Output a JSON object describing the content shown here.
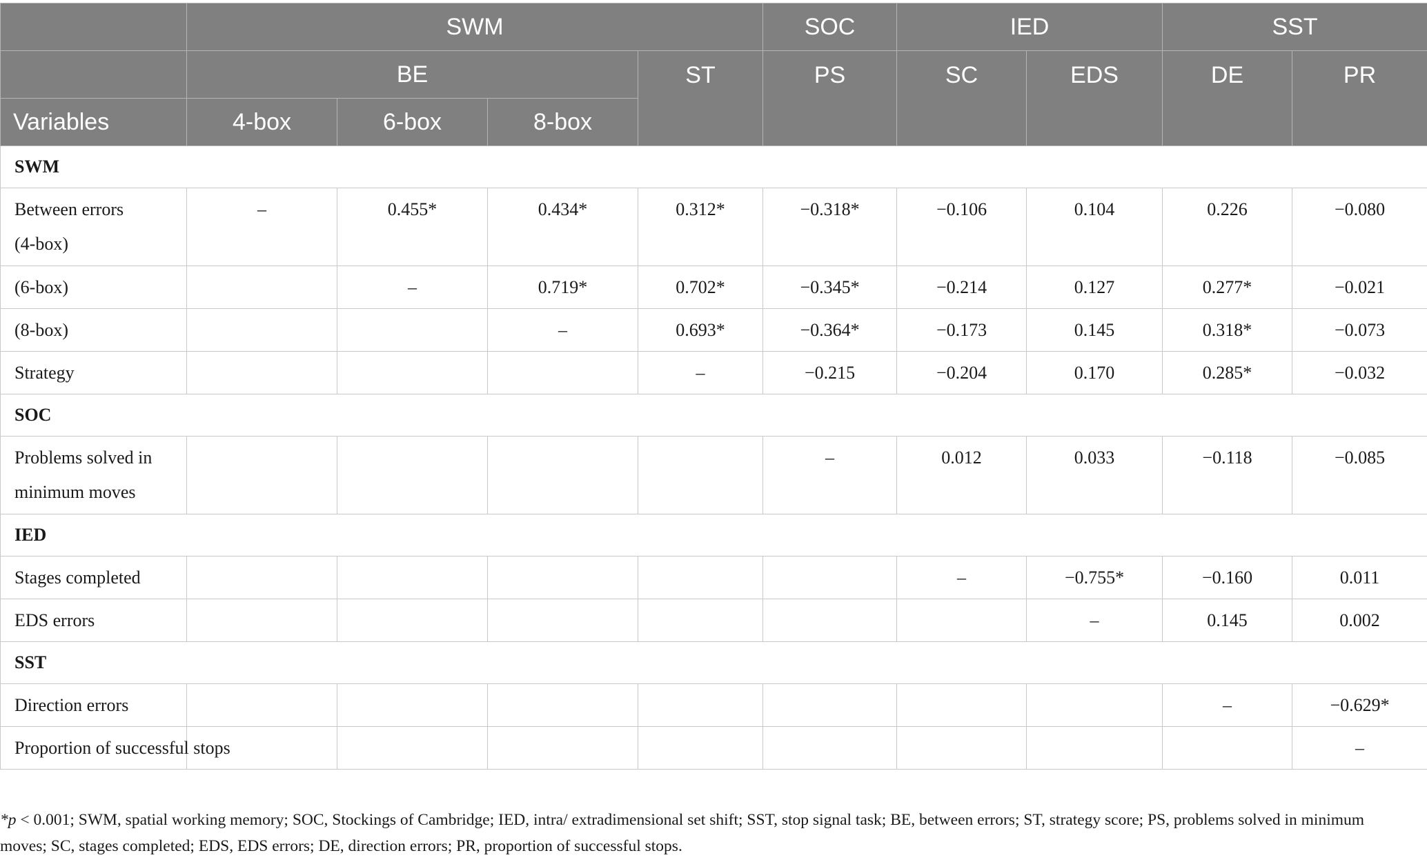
{
  "header": {
    "groups": [
      "SWM",
      "SOC",
      "IED",
      "SST"
    ],
    "subgroups": [
      "BE",
      "ST",
      "PS",
      "SC",
      "EDS",
      "DE",
      "PR"
    ],
    "variables_label": "Variables",
    "box_cols": [
      "4-box",
      "6-box",
      "8-box"
    ]
  },
  "sections": {
    "swm": "SWM",
    "soc": "SOC",
    "ied": "IED",
    "sst": "SST"
  },
  "rows": [
    {
      "label": "Between errors (4-box)",
      "cells": [
        "–",
        "0.455*",
        "0.434*",
        "0.312*",
        "−0.318*",
        "−0.106",
        "0.104",
        "0.226",
        "−0.080"
      ]
    },
    {
      "label": "(6-box)",
      "cells": [
        "",
        "–",
        "0.719*",
        "0.702*",
        "−0.345*",
        "−0.214",
        "0.127",
        "0.277*",
        "−0.021"
      ]
    },
    {
      "label": "(8-box)",
      "cells": [
        "",
        "",
        "–",
        "0.693*",
        "−0.364*",
        "−0.173",
        "0.145",
        "0.318*",
        "−0.073"
      ]
    },
    {
      "label": "Strategy",
      "cells": [
        "",
        "",
        "",
        "–",
        "−0.215",
        "−0.204",
        "0.170",
        "0.285*",
        "−0.032"
      ]
    },
    {
      "label": "Problems solved in minimum moves",
      "cells": [
        "",
        "",
        "",
        "",
        "–",
        "0.012",
        "0.033",
        "−0.118",
        "−0.085"
      ]
    },
    {
      "label": "Stages completed",
      "cells": [
        "",
        "",
        "",
        "",
        "",
        "–",
        "−0.755*",
        "−0.160",
        "0.011"
      ]
    },
    {
      "label": "EDS errors",
      "cells": [
        "",
        "",
        "",
        "",
        "",
        "",
        "–",
        "0.145",
        "0.002"
      ]
    },
    {
      "label": "Direction errors",
      "cells": [
        "",
        "",
        "",
        "",
        "",
        "",
        "",
        "–",
        "−0.629*"
      ]
    },
    {
      "label": "Proportion of successful stops",
      "cells": [
        "",
        "",
        "",
        "",
        "",
        "",
        "",
        "",
        "–"
      ]
    }
  ],
  "footnote": {
    "symbol": "*p",
    "text": " < 0.001; SWM, spatial working memory; SOC, Stockings of Cambridge; IED, intra/ extradimensional set shift; SST, stop signal task; BE, between errors; ST, strategy score; PS, problems solved in minimum moves; SC, stages completed; EDS, EDS errors; DE, direction errors; PR, proportion of successful stops."
  }
}
